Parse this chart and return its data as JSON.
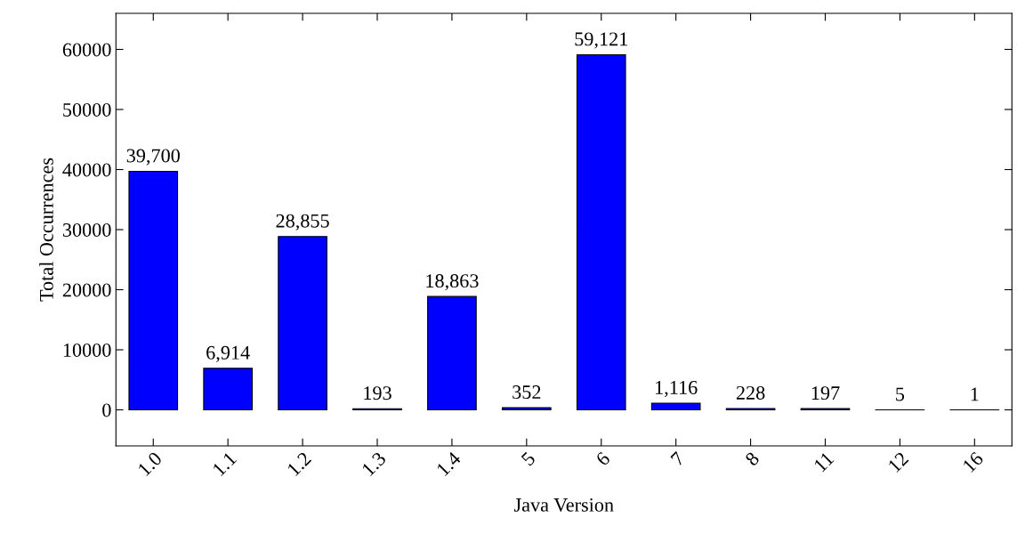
{
  "chart_data": {
    "type": "bar",
    "xlabel": "Java Version",
    "ylabel": "Total Occurrences",
    "categories": [
      "1.0",
      "1.1",
      "1.2",
      "1.3",
      "1.4",
      "5",
      "6",
      "7",
      "8",
      "11",
      "12",
      "16"
    ],
    "values": [
      39700,
      6914,
      28855,
      193,
      18863,
      352,
      59121,
      1116,
      228,
      197,
      5,
      1
    ],
    "value_labels": [
      "39,700",
      "6,914",
      "28,855",
      "193",
      "18,863",
      "352",
      "59,121",
      "1,116",
      "228",
      "197",
      "5",
      "1"
    ],
    "color": "#0000ff",
    "ylim": [
      -6000,
      66000
    ],
    "yticks": [
      0,
      10000,
      20000,
      30000,
      40000,
      50000,
      60000
    ],
    "grid": false,
    "legend": false
  }
}
